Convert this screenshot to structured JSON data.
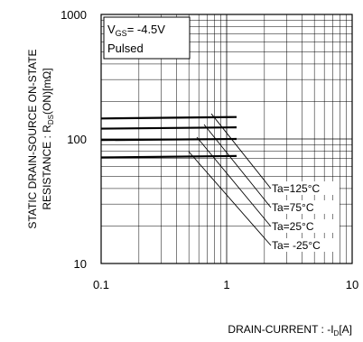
{
  "chart_data": {
    "type": "line",
    "title": "",
    "xlabel": {
      "main": "DRAIN-CURRENT : -I",
      "sub": "D",
      "unit": "[A]"
    },
    "ylabel": {
      "line1": "STATIC DRAIN-SOURCE ON-STATE",
      "line2_pre": "RESISTANCE : R",
      "line2_sub": "DS",
      "line2_post": "(ON)[mΩ]"
    },
    "xscale": "log",
    "yscale": "log",
    "xlim": [
      0.1,
      10
    ],
    "ylim": [
      10,
      1000
    ],
    "x_ticks": [
      "0.1",
      "1",
      "10"
    ],
    "y_ticks": [
      "10",
      "100",
      "1000"
    ],
    "grid": true,
    "conditions": {
      "line1_pre": "V",
      "line1_sub": "GS",
      "line1_post": "= -4.5V",
      "line2": "Pulsed"
    },
    "series": [
      {
        "name": "Ta=125°C",
        "x": [
          0.1,
          1.2
        ],
        "y": [
          146,
          150
        ]
      },
      {
        "name": "Ta=75°C",
        "x": [
          0.1,
          1.2
        ],
        "y": [
          121,
          124
        ]
      },
      {
        "name": "Ta=25°C",
        "x": [
          0.1,
          1.2
        ],
        "y": [
          98,
          100
        ]
      },
      {
        "name": "Ta= -25°C",
        "x": [
          0.1,
          1.2
        ],
        "y": [
          71,
          73
        ]
      }
    ]
  }
}
